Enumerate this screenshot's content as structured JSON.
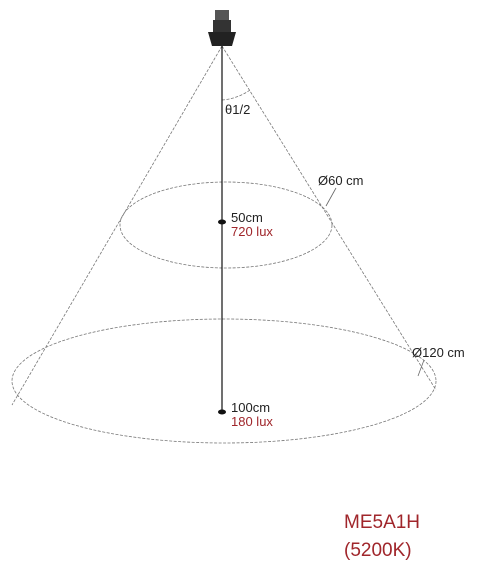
{
  "angle_label": "θ1/2",
  "levels": [
    {
      "distance": "50cm",
      "illuminance": "720 lux",
      "diameter": "Ø60 cm"
    },
    {
      "distance": "100cm",
      "illuminance": "180 lux",
      "diameter": "Ø120 cm"
    }
  ],
  "model": {
    "name": "ME5A1H",
    "cct": "(5200K)"
  }
}
